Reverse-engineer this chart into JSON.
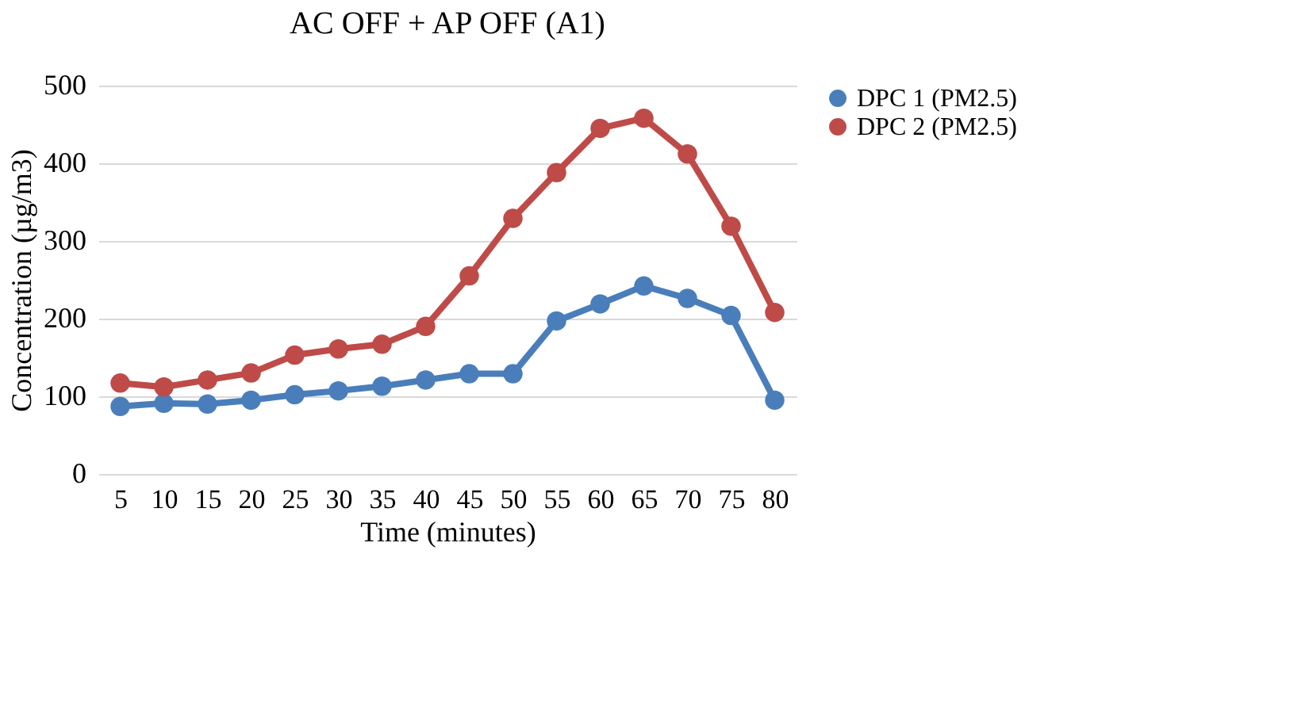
{
  "chart_data": {
    "type": "line",
    "title": "AC OFF + AP OFF (A1)",
    "xlabel": "Time (minutes)",
    "ylabel": "Concentration (µg/m3)",
    "categories": [
      "5",
      "10",
      "15",
      "20",
      "25",
      "30",
      "35",
      "40",
      "45",
      "50",
      "55",
      "60",
      "65",
      "70",
      "75",
      "80"
    ],
    "series": [
      {
        "name": "DPC 1 (PM2.5)",
        "color": "#4a7ebb",
        "values": [
          87,
          91,
          90,
          95,
          102,
          107,
          113,
          121,
          129,
          129,
          197,
          219,
          242,
          226,
          204,
          95
        ]
      },
      {
        "name": "DPC 2 (PM2.5)",
        "color": "#be4b48",
        "values": [
          117,
          112,
          121,
          130,
          153,
          161,
          167,
          190,
          255,
          329,
          388,
          445,
          458,
          412,
          319,
          208
        ]
      }
    ],
    "ylim": [
      0,
      500
    ],
    "yticks": [
      0,
      100,
      200,
      300,
      400,
      500
    ],
    "grid": "y",
    "legend": "right",
    "marker": "circle",
    "line_style": "solid"
  }
}
